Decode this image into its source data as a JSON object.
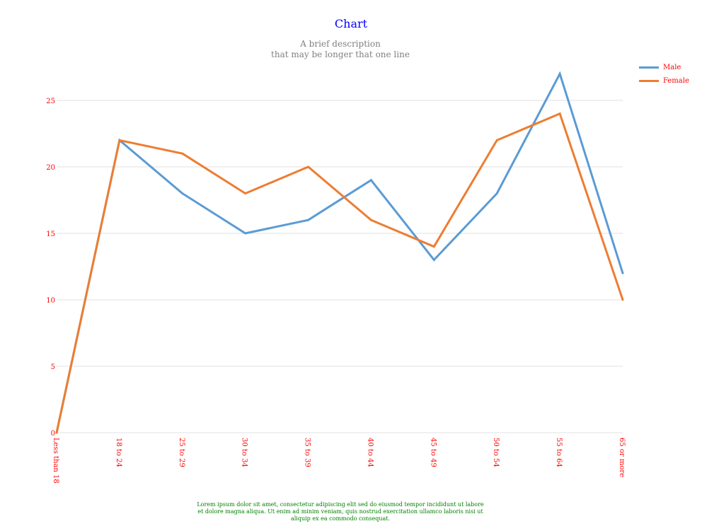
{
  "chart_data": {
    "type": "line",
    "title": "Chart",
    "subtitle": [
      "A brief description",
      "that may be longer that one line"
    ],
    "categories": [
      "Less than 18",
      "18 to 24",
      "25 to 29",
      "30 to 34",
      "35 to 39",
      "40 to 44",
      "45 to 49",
      "50 to 54",
      "55 to 64",
      "65 or more"
    ],
    "series": [
      {
        "name": "Male",
        "color": "#5b9bd5",
        "values": [
          0,
          22,
          18,
          15,
          16,
          19,
          13,
          18,
          27,
          12
        ]
      },
      {
        "name": "Female",
        "color": "#ed7d31",
        "values": [
          0,
          22,
          21,
          18,
          20,
          16,
          14,
          22,
          24,
          10
        ]
      }
    ],
    "ylim": [
      0,
      25
    ],
    "yticks": [
      0,
      5,
      10,
      15,
      20,
      25
    ],
    "grid": true,
    "legend_position": "top-right",
    "footer": "Lorem ipsum dolor sit amet, consectetur adipiscing elit sed do eiusmod tempor incididunt ut labore et dolore magna aliqua. Ut enim ad minim veniam, quis nostrud exercitation ullamco laboris nisi ut aliquip ex ea commodo consequat."
  }
}
